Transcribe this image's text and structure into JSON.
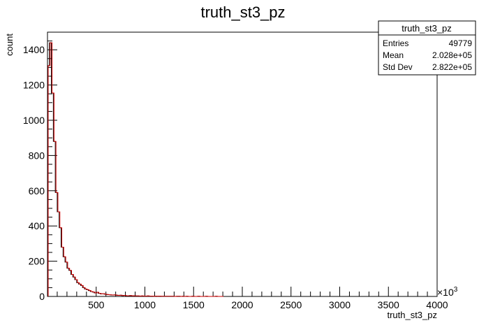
{
  "chart_data": {
    "type": "histogram",
    "title": "truth_st3_pz",
    "xlabel": "truth_st3_pz",
    "ylabel": "count",
    "x_multiplier_label": "×10",
    "x_multiplier_exp": "3",
    "xlim": [
      0,
      4000
    ],
    "ylim": [
      0,
      1500
    ],
    "grid": false,
    "bin_width": 20,
    "x_ticks": [
      "500",
      "1000",
      "1500",
      "2000",
      "2500",
      "3000",
      "3500",
      "4000"
    ],
    "y_ticks": [
      "0",
      "200",
      "400",
      "600",
      "800",
      "1000",
      "1200",
      "1400"
    ],
    "line_color_fill": "#000000",
    "line_color_overlay": "#cc0000",
    "values": [
      1310,
      1440,
      1155,
      880,
      590,
      480,
      390,
      280,
      225,
      195,
      160,
      148,
      125,
      110,
      95,
      78,
      70,
      62,
      50,
      42,
      38,
      33,
      28,
      25,
      20,
      24,
      18,
      15,
      16,
      13,
      11,
      10,
      9,
      8,
      9,
      7,
      6,
      7,
      5,
      6,
      4,
      4,
      5,
      3,
      4,
      3,
      3,
      2,
      3,
      2,
      2,
      3,
      2,
      2,
      1,
      2,
      1,
      2,
      1,
      1,
      1,
      1,
      1,
      1,
      1,
      0,
      1,
      1,
      0,
      1,
      0,
      1,
      0,
      0,
      1,
      0,
      0,
      1,
      0,
      0,
      0,
      1,
      0,
      0,
      0,
      0,
      1,
      0,
      0,
      0
    ],
    "stats": {
      "title": "truth_st3_pz",
      "rows": [
        {
          "label": "Entries",
          "value": "49779"
        },
        {
          "label": "Mean",
          "value": "2.028e+05"
        },
        {
          "label": "Std Dev",
          "value": "2.822e+05"
        }
      ]
    }
  }
}
